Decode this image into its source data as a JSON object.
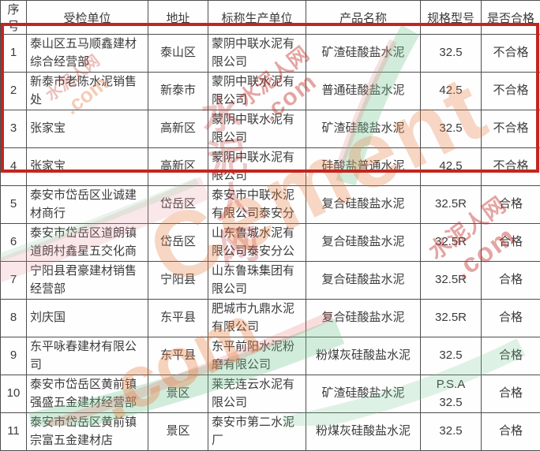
{
  "table": {
    "headers": [
      "序号",
      "受检单位",
      "地址",
      "标称生产单位",
      "产品名称",
      "规格型号",
      "是否合格"
    ],
    "rows": [
      {
        "no": "1",
        "unit": "泰山区五马顺鑫建材综合经营部",
        "address": "泰山区",
        "manufacturer": "蒙阴中联水泥有限公司",
        "product": "矿渣硅酸盐水泥",
        "spec": "32.5",
        "result": "不合格"
      },
      {
        "no": "2",
        "unit": "新泰市老陈水泥销售处",
        "address": "新泰市",
        "manufacturer": "蒙阴中联水泥有限公司",
        "product": "普通硅酸盐水泥",
        "spec": "42.5",
        "result": "不合格"
      },
      {
        "no": "3",
        "unit": "张家宝",
        "address": "高新区",
        "manufacturer": "蒙阴中联水泥有限公司",
        "product": "矿渣硅酸盐水泥",
        "spec": "32.5",
        "result": "不合格"
      },
      {
        "no": "4",
        "unit": "张家宝",
        "address": "高新区",
        "manufacturer": "蒙阴中联水泥有限公司",
        "product": "硅酸盐普通水泥",
        "spec": "42.5",
        "result": "不合格"
      },
      {
        "no": "5",
        "unit": "泰安市岱岳区业诚建材商行",
        "address": "岱岳区",
        "manufacturer": "泰安市中联水泥有限公司泰安分",
        "product": "复合硅酸盐水泥",
        "spec": "32.5R",
        "result": "合格"
      },
      {
        "no": "6",
        "unit": "泰安市岱岳区道朗镇道朗村鑫星五交化商",
        "address": "岱岳区",
        "manufacturer": "山东鲁城水泥有限公司泰安分公",
        "product": "复合硅酸盐水泥",
        "spec": "32.5R",
        "result": "合格"
      },
      {
        "no": "7",
        "unit": "宁阳县君豪建材销售经营部",
        "address": "宁阳县",
        "manufacturer": "山东鲁珠集团有限公司",
        "product": "复合硅酸盐水泥",
        "spec": "32.5R",
        "result": "合格"
      },
      {
        "no": "8",
        "unit": "刘庆国",
        "address": "东平县",
        "manufacturer": "肥城市九鼎水泥有限公司",
        "product": "复合硅酸盐水泥",
        "spec": "32.5R",
        "result": "合格"
      },
      {
        "no": "9",
        "unit": "东平咏春建材有限公司",
        "address": "东平县",
        "manufacturer": "东平前阳水泥粉磨有限公司",
        "product": "粉煤灰硅酸盐水泥",
        "spec": "32.5",
        "result": "合格"
      },
      {
        "no": "10",
        "unit": "泰安市岱岳区黄前镇强盛五金建材经营部",
        "address": "景区",
        "manufacturer": "莱芜连云水泥有限公司",
        "product": "矿渣硅酸盐水泥",
        "spec": "P.S.A 32.5",
        "result": "合格"
      },
      {
        "no": "11",
        "unit": "泰安市岱岳区黄前镇宗富五金建材店",
        "address": "景区",
        "manufacturer": "泰安市第二水泥厂",
        "product": "粉煤灰硅酸盐水泥",
        "spec": "32.5",
        "result": "合格"
      }
    ],
    "highlighted_row_numbers": [
      1,
      2,
      3,
      4
    ]
  },
  "watermark": {
    "brand_cn": "水泥人网",
    "brand_en": "Cement",
    "domain": ".com"
  },
  "colors": {
    "highlight_border": "#c3251e",
    "table_border": "#4e4e4e",
    "text": "#3b3b3b",
    "watermark_red": "#c12a24",
    "watermark_orange": "#e97a3e"
  }
}
